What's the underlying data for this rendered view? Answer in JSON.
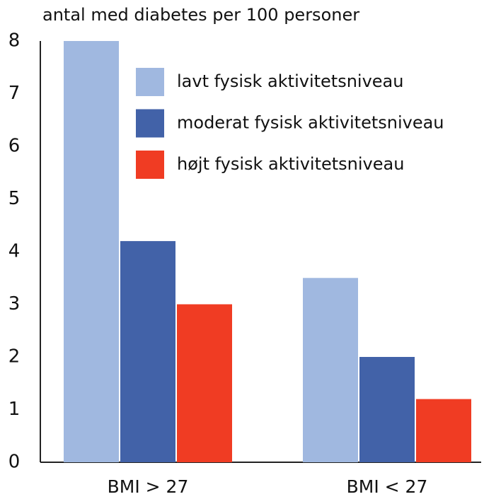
{
  "chart_data": {
    "type": "bar",
    "title": "antal med diabetes per 100 personer",
    "categories": [
      "BMI > 27",
      "BMI < 27"
    ],
    "series": [
      {
        "name": "lavt fysisk aktivitetsniveau",
        "color": "#a0b8e0",
        "values": [
          8,
          3.5
        ]
      },
      {
        "name": "moderat fysisk aktivitetsniveau",
        "color": "#4262a8",
        "values": [
          4.2,
          2.0
        ]
      },
      {
        "name": "højt fysisk aktivitetsniveau",
        "color": "#f03c23",
        "values": [
          3.0,
          1.2
        ]
      }
    ],
    "ylim": [
      0,
      8
    ],
    "yticks": [
      0,
      1,
      2,
      3,
      4,
      5,
      6,
      7,
      8
    ],
    "legend": "upper right"
  }
}
